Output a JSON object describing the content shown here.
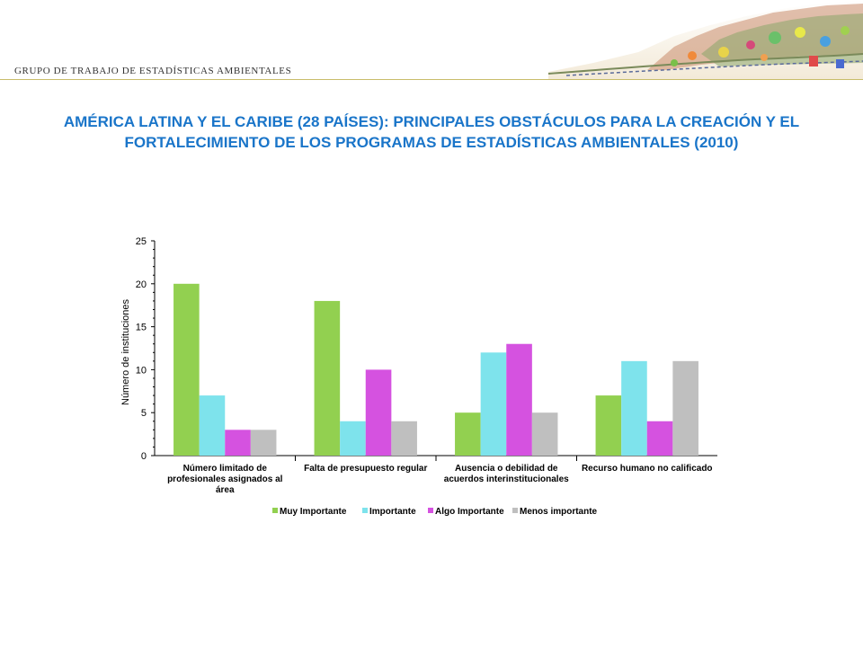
{
  "header": {
    "label": "GRUPO DE TRABAJO DE ESTADÍSTICAS AMBIENTALES"
  },
  "title": "AMÉRICA LATINA Y EL CARIBE (28 PAÍSES): PRINCIPALES OBSTÁCULOS PARA LA CREACIÓN Y EL FORTALECIMIENTO DE LOS PROGRAMAS DE ESTADÍSTICAS AMBIENTALES (2010)",
  "chart_data": {
    "type": "bar",
    "categories": [
      [
        "Número limitado de",
        "profesionales asignados al",
        "área"
      ],
      [
        "Falta de presupuesto regular"
      ],
      [
        "Ausencia o debilidad de",
        "acuerdos interinstitucionales"
      ],
      [
        "Recurso humano no calificado"
      ]
    ],
    "series": [
      {
        "name": "Muy Importante",
        "color": "#92d050",
        "values": [
          20,
          18,
          5,
          7
        ]
      },
      {
        "name": "Importante",
        "color": "#7ee3ec",
        "values": [
          7,
          4,
          12,
          11
        ]
      },
      {
        "name": "Algo Importante",
        "color": "#d552e0",
        "values": [
          3,
          10,
          13,
          4
        ]
      },
      {
        "name": "Menos importante",
        "color": "#bfbfbf",
        "values": [
          3,
          4,
          5,
          11
        ]
      }
    ],
    "ylabel": "Número de instituciones",
    "xlabel": "",
    "ylim": [
      0,
      25
    ],
    "yticks": [
      0,
      5,
      10,
      15,
      20,
      25
    ],
    "grid": false,
    "legend": "bottom"
  }
}
